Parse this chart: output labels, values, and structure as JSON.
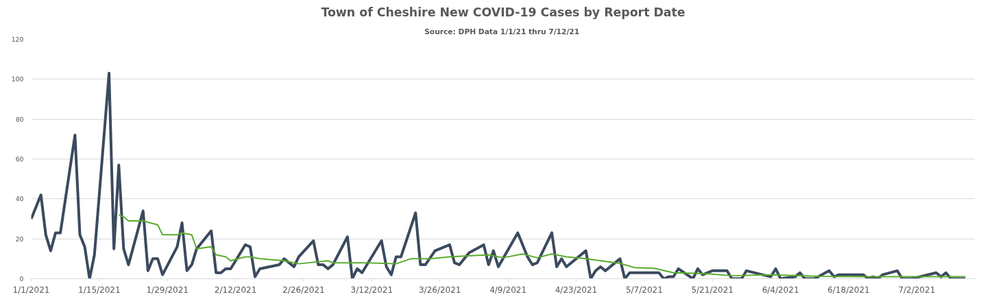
{
  "chart_data": {
    "type": "line",
    "title": "Town of Cheshire New COVID-19 Cases by Report Date",
    "subtitle": "Source: DPH Data  1/1/21 thru 7/12/21",
    "xlim": [
      "2021-01-01",
      "2021-07-14"
    ],
    "xticks": [
      {
        "value": "2021-01-01",
        "label": "1/1/2021"
      },
      {
        "value": "2021-01-15",
        "label": "1/15/2021"
      },
      {
        "value": "2021-01-29",
        "label": "1/29/2021"
      },
      {
        "value": "2021-02-12",
        "label": "2/12/2021"
      },
      {
        "value": "2021-02-26",
        "label": "2/26/2021"
      },
      {
        "value": "2021-03-12",
        "label": "3/12/2021"
      },
      {
        "value": "2021-03-26",
        "label": "3/26/2021"
      },
      {
        "value": "2021-04-09",
        "label": "4/9/2021"
      },
      {
        "value": "2021-04-23",
        "label": "4/23/2021"
      },
      {
        "value": "2021-05-07",
        "label": "5/7/2021"
      },
      {
        "value": "2021-05-21",
        "label": "5/21/2021"
      },
      {
        "value": "2021-06-04",
        "label": "6/4/2021"
      },
      {
        "value": "2021-06-18",
        "label": "6/18/2021"
      },
      {
        "value": "2021-07-02",
        "label": "7/2/2021"
      }
    ],
    "ylim": [
      0,
      120
    ],
    "yticks": [
      0,
      20,
      40,
      60,
      80,
      100,
      120
    ],
    "grid": "y",
    "marker": "none",
    "series": [
      {
        "color": "#3b4a5e",
        "x": [
          "2021-01-01",
          "2021-01-03",
          "2021-01-04",
          "2021-01-05",
          "2021-01-06",
          "2021-01-07",
          "2021-01-10",
          "2021-01-11",
          "2021-01-12",
          "2021-01-13",
          "2021-01-14",
          "2021-01-17",
          "2021-01-18",
          "2021-01-19",
          "2021-01-20",
          "2021-01-21",
          "2021-01-24",
          "2021-01-25",
          "2021-01-26",
          "2021-01-27",
          "2021-01-28",
          "2021-01-31",
          "2021-02-01",
          "2021-02-02",
          "2021-02-03",
          "2021-02-04",
          "2021-02-07",
          "2021-02-08",
          "2021-02-09",
          "2021-02-10",
          "2021-02-11",
          "2021-02-14",
          "2021-02-15",
          "2021-02-16",
          "2021-02-17",
          "2021-02-19",
          "2021-02-21",
          "2021-02-22",
          "2021-02-24",
          "2021-02-25",
          "2021-02-28",
          "2021-03-01",
          "2021-03-02",
          "2021-03-03",
          "2021-03-04",
          "2021-03-07",
          "2021-03-08",
          "2021-03-09",
          "2021-03-10",
          "2021-03-11",
          "2021-03-14",
          "2021-03-15",
          "2021-03-16",
          "2021-03-17",
          "2021-03-18",
          "2021-03-21",
          "2021-03-22",
          "2021-03-23",
          "2021-03-25",
          "2021-03-28",
          "2021-03-29",
          "2021-03-30",
          "2021-04-01",
          "2021-04-04",
          "2021-04-05",
          "2021-04-06",
          "2021-04-07",
          "2021-04-11",
          "2021-04-13",
          "2021-04-14",
          "2021-04-15",
          "2021-04-18",
          "2021-04-19",
          "2021-04-20",
          "2021-04-21",
          "2021-04-25",
          "2021-04-26",
          "2021-04-27",
          "2021-04-28",
          "2021-04-29",
          "2021-05-02",
          "2021-05-03",
          "2021-05-04",
          "2021-05-10",
          "2021-05-11",
          "2021-05-12",
          "2021-05-13",
          "2021-05-14",
          "2021-05-17",
          "2021-05-18",
          "2021-05-19",
          "2021-05-21",
          "2021-05-24",
          "2021-05-25",
          "2021-05-27",
          "2021-05-28",
          "2021-06-02",
          "2021-06-03",
          "2021-06-04",
          "2021-06-07",
          "2021-06-08",
          "2021-06-09",
          "2021-06-11",
          "2021-06-14",
          "2021-06-15",
          "2021-06-16",
          "2021-06-21",
          "2021-06-22",
          "2021-06-23",
          "2021-06-24",
          "2021-06-25",
          "2021-06-28",
          "2021-06-29",
          "2021-07-01",
          "2021-07-06",
          "2021-07-07",
          "2021-07-08",
          "2021-07-09",
          "2021-07-12"
        ],
        "values": [
          30,
          42,
          22,
          14,
          23,
          23,
          72,
          22,
          16,
          0,
          12,
          103,
          15,
          57,
          15,
          7,
          34,
          4,
          10,
          10,
          2,
          16,
          28,
          4,
          7,
          15,
          24,
          3,
          3,
          5,
          5,
          17,
          16,
          1,
          5,
          6,
          7,
          10,
          6,
          11,
          19,
          7,
          7,
          5,
          7,
          21,
          0,
          5,
          3,
          7,
          19,
          6,
          2,
          11,
          11,
          33,
          7,
          7,
          14,
          17,
          8,
          7,
          13,
          17,
          7,
          14,
          6,
          23,
          11,
          7,
          8,
          23,
          6,
          10,
          6,
          14,
          0,
          4,
          6,
          4,
          10,
          0,
          3,
          3,
          0,
          1,
          1,
          5,
          0,
          5,
          2,
          4,
          4,
          0,
          0,
          4,
          1,
          5,
          0,
          1,
          3,
          0,
          0,
          4,
          1,
          2,
          2,
          0,
          1,
          0,
          2,
          4,
          0,
          0,
          3,
          1,
          3,
          0,
          0
        ]
      },
      {
        "color": "#5aab2c",
        "x": [
          "2021-01-19",
          "2021-01-20",
          "2021-01-21",
          "2021-01-24",
          "2021-01-27",
          "2021-01-28",
          "2021-01-31",
          "2021-02-01",
          "2021-02-03",
          "2021-02-04",
          "2021-02-07",
          "2021-02-08",
          "2021-02-10",
          "2021-02-11",
          "2021-02-14",
          "2021-02-15",
          "2021-02-17",
          "2021-02-22",
          "2021-02-25",
          "2021-03-03",
          "2021-03-04",
          "2021-03-11",
          "2021-03-17",
          "2021-03-20",
          "2021-03-24",
          "2021-03-28",
          "2021-04-05",
          "2021-04-08",
          "2021-04-12",
          "2021-04-15",
          "2021-04-18",
          "2021-04-21",
          "2021-04-25",
          "2021-04-28",
          "2021-05-02",
          "2021-05-05",
          "2021-05-09",
          "2021-05-13",
          "2021-05-20",
          "2021-05-25",
          "2021-06-02",
          "2021-06-12",
          "2021-06-21",
          "2021-07-01",
          "2021-07-12"
        ],
        "values": [
          32,
          31,
          29,
          29,
          27,
          22,
          22,
          23,
          22,
          15,
          16,
          12,
          11,
          9,
          11,
          11,
          10,
          9,
          7.5,
          9,
          8,
          8,
          7.5,
          10,
          10,
          11,
          12,
          10.5,
          12.4,
          10.5,
          12.4,
          11,
          10,
          9,
          7.7,
          5.6,
          5.2,
          3,
          2.5,
          1.5,
          2,
          1.2,
          1,
          1,
          1
        ]
      }
    ]
  }
}
